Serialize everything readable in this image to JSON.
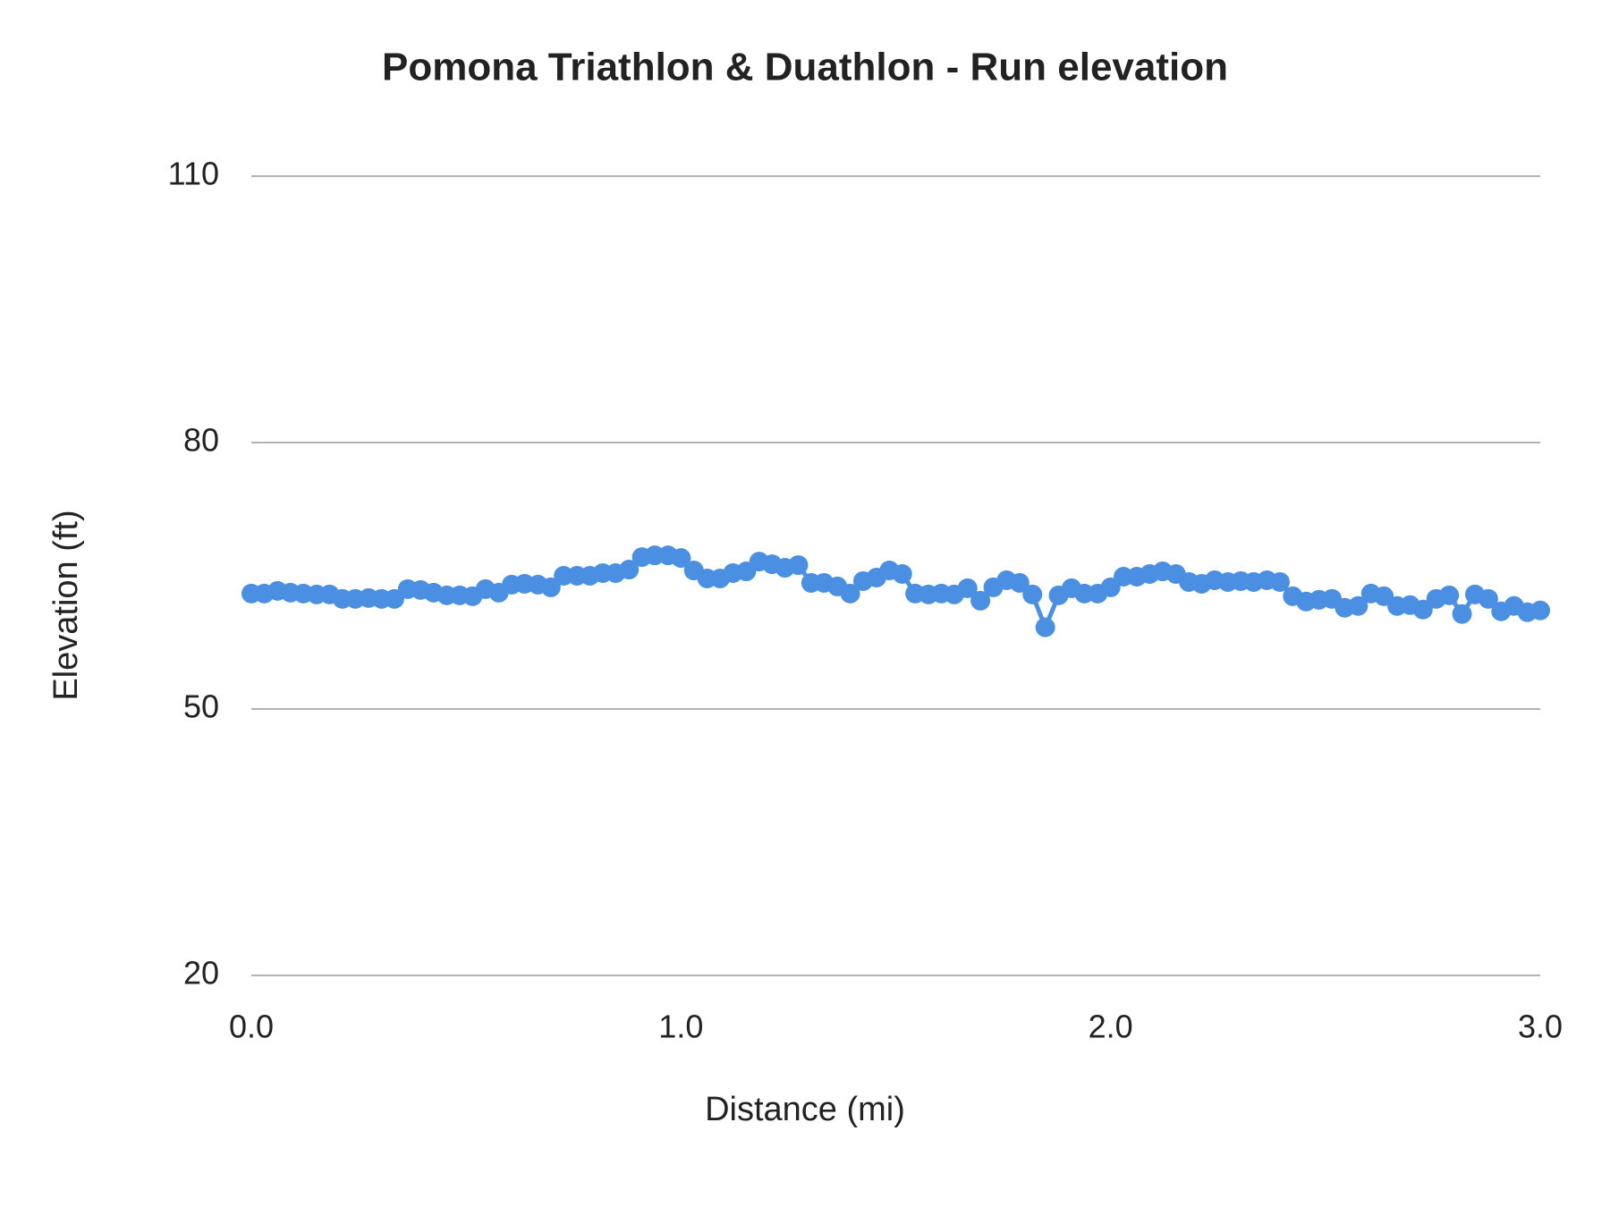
{
  "chart_data": {
    "type": "line",
    "title": "Pomona Triathlon & Duathlon - Run elevation",
    "x_label": "Distance (mi)",
    "y_label": "Elevation (ft)",
    "x": [
      0,
      0.03,
      0.061,
      0.091,
      0.121,
      0.152,
      0.182,
      0.212,
      0.242,
      0.273,
      0.303,
      0.333,
      0.364,
      0.394,
      0.424,
      0.455,
      0.485,
      0.515,
      0.545,
      0.576,
      0.606,
      0.636,
      0.667,
      0.697,
      0.727,
      0.758,
      0.788,
      0.818,
      0.848,
      0.879,
      0.909,
      0.939,
      0.97,
      1.0,
      1.03,
      1.061,
      1.091,
      1.121,
      1.152,
      1.182,
      1.212,
      1.242,
      1.273,
      1.303,
      1.333,
      1.364,
      1.394,
      1.424,
      1.455,
      1.485,
      1.515,
      1.545,
      1.576,
      1.606,
      1.636,
      1.667,
      1.697,
      1.727,
      1.758,
      1.788,
      1.818,
      1.848,
      1.879,
      1.909,
      1.939,
      1.97,
      2.0,
      2.03,
      2.061,
      2.091,
      2.121,
      2.152,
      2.182,
      2.212,
      2.242,
      2.273,
      2.303,
      2.333,
      2.364,
      2.394,
      2.424,
      2.455,
      2.485,
      2.515,
      2.545,
      2.576,
      2.606,
      2.636,
      2.667,
      2.697,
      2.727,
      2.758,
      2.788,
      2.818,
      2.848,
      2.879,
      2.909,
      2.939,
      2.97,
      3.0
    ],
    "series": [
      {
        "name": "Elevation",
        "color": "#4a8fe2",
        "values": [
          63.0,
          63.0,
          63.3,
          63.1,
          63.0,
          62.9,
          62.9,
          62.4,
          62.4,
          62.5,
          62.4,
          62.4,
          63.5,
          63.4,
          63.1,
          62.8,
          62.8,
          62.7,
          63.5,
          63.1,
          64.0,
          64.1,
          64.0,
          63.7,
          65.0,
          65.0,
          65.0,
          65.3,
          65.3,
          65.7,
          67.1,
          67.3,
          67.3,
          67.0,
          65.6,
          64.7,
          64.7,
          65.3,
          65.5,
          66.6,
          66.3,
          65.9,
          66.2,
          64.2,
          64.2,
          63.8,
          63.0,
          64.4,
          64.8,
          65.6,
          65.2,
          63.0,
          62.9,
          63.0,
          62.9,
          63.6,
          62.2,
          63.7,
          64.5,
          64.2,
          62.9,
          59.2,
          62.8,
          63.6,
          63.0,
          63.0,
          63.7,
          64.9,
          64.9,
          65.2,
          65.5,
          65.2,
          64.3,
          64.1,
          64.5,
          64.3,
          64.4,
          64.3,
          64.5,
          64.3,
          62.7,
          62.1,
          62.3,
          62.4,
          61.4,
          61.6,
          63.0,
          62.7,
          61.6,
          61.7,
          61.2,
          62.4,
          62.8,
          60.7,
          62.9,
          62.4,
          61.0,
          61.6,
          60.9,
          61.1
        ]
      }
    ],
    "xlim": [
      0,
      3
    ],
    "xticks": [
      {
        "value": 0,
        "label": "0.0"
      },
      {
        "value": 1,
        "label": "1.0"
      },
      {
        "value": 2,
        "label": "2.0"
      },
      {
        "value": 3,
        "label": "3.0"
      }
    ],
    "ylim": [
      20,
      110
    ],
    "yticks": [
      20,
      50,
      80,
      110
    ],
    "grid": true
  }
}
